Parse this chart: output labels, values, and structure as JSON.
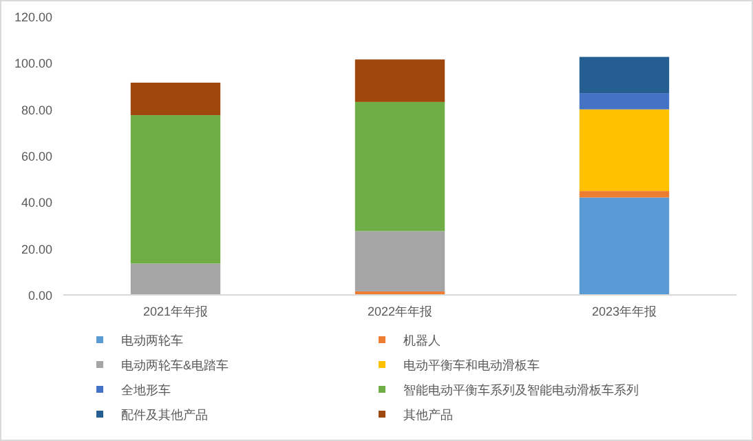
{
  "chart_data": {
    "type": "bar",
    "stacked": true,
    "categories": [
      "2021年年报",
      "2022年年报",
      "2023年年报"
    ],
    "series": [
      {
        "name": "电动两轮车",
        "color": "#5b9bd5",
        "values": [
          null,
          null,
          42
        ]
      },
      {
        "name": "机器人",
        "color": "#ed7d31",
        "values": [
          null,
          1.5,
          2.8
        ]
      },
      {
        "name": "电动两轮车&电踏车",
        "color": "#a5a5a5",
        "values": [
          13.5,
          26,
          null
        ]
      },
      {
        "name": "电动平衡车和电动滑板车",
        "color": "#ffc000",
        "values": [
          null,
          null,
          35.2
        ]
      },
      {
        "name": "全地形车",
        "color": "#4472c4",
        "values": [
          null,
          null,
          7
        ]
      },
      {
        "name": "智能电动平衡车系列及智能电动滑板车系列",
        "color": "#70ad47",
        "values": [
          64,
          55.7,
          null
        ]
      },
      {
        "name": "配件及其他产品",
        "color": "#255e91",
        "values": [
          null,
          null,
          15.6
        ]
      },
      {
        "name": "其他产品",
        "color": "#9e480e",
        "values": [
          14,
          18.3,
          null
        ]
      }
    ],
    "ylim": [
      0,
      120
    ],
    "yticks": [
      {
        "value": 0,
        "label": "0.00"
      },
      {
        "value": 20,
        "label": "20.00"
      },
      {
        "value": 40,
        "label": "40.00"
      },
      {
        "value": 60,
        "label": "60.00"
      },
      {
        "value": 80,
        "label": "80.00"
      },
      {
        "value": 100,
        "label": "100.00"
      },
      {
        "value": 120,
        "label": "120.00"
      }
    ],
    "grid": false,
    "legend": "bottom"
  }
}
